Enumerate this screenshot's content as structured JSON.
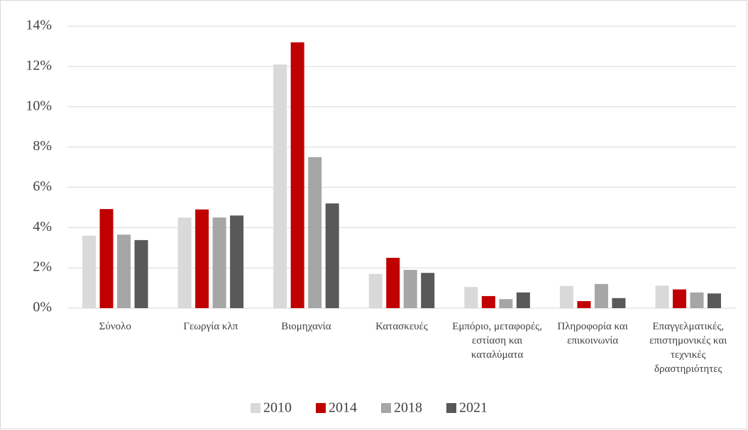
{
  "chart_data": {
    "type": "bar",
    "categories": [
      "Σύνολο",
      "Γεωργία κλπ",
      "Βιομηχανία",
      "Κατασκευές",
      "Εμπόριο, μεταφορές, εστίαση και καταλύματα",
      "Πληροφορία και επικοινωνία",
      "Επαγγελματικές, επιστημονικές και τεχνικές δραστηριότητες"
    ],
    "series": [
      {
        "name": "2010",
        "color": "#d9d9d9",
        "values": [
          3.6,
          4.5,
          12.1,
          1.7,
          1.05,
          1.1,
          1.12
        ]
      },
      {
        "name": "2014",
        "color": "#c00000",
        "values": [
          4.92,
          4.9,
          13.2,
          2.5,
          0.6,
          0.35,
          0.93
        ]
      },
      {
        "name": "2018",
        "color": "#a6a6a6",
        "values": [
          3.65,
          4.5,
          7.5,
          1.9,
          0.45,
          1.2,
          0.78
        ]
      },
      {
        "name": "2021",
        "color": "#595959",
        "values": [
          3.38,
          4.6,
          5.2,
          1.75,
          0.78,
          0.5,
          0.73
        ]
      }
    ],
    "ylim": [
      0,
      14
    ],
    "yticks": [
      {
        "value": 0,
        "label": "0%"
      },
      {
        "value": 2,
        "label": "2%"
      },
      {
        "value": 4,
        "label": "4%"
      },
      {
        "value": 6,
        "label": "6%"
      },
      {
        "value": 8,
        "label": "8%"
      },
      {
        "value": 10,
        "label": "10%"
      },
      {
        "value": 12,
        "label": "12%"
      },
      {
        "value": 14,
        "label": "14%"
      }
    ],
    "grid": true,
    "legend": "bottom"
  }
}
